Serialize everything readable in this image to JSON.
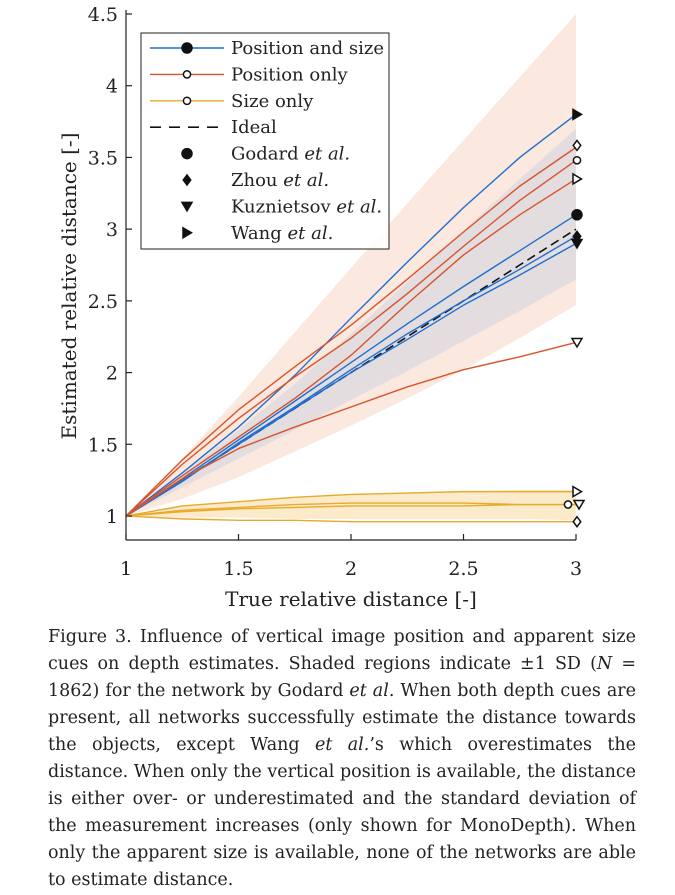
{
  "chart_data": {
    "type": "line",
    "xlabel": "True relative distance [-]",
    "ylabel": "Estimated relative distance [-]",
    "xlim": [
      1,
      3
    ],
    "ylim": [
      0.8,
      4.5
    ],
    "xticks": [
      1,
      1.5,
      2,
      2.5,
      3
    ],
    "yticks": [
      1,
      1.5,
      2,
      2.5,
      3,
      3.5,
      4,
      4.5
    ],
    "xtick_labels": [
      "1",
      "1.5",
      "2",
      "2.5",
      "3"
    ],
    "ytick_labels": [
      "1",
      "1.5",
      "2",
      "2.5",
      "3",
      "3.5",
      "4",
      "4.5"
    ],
    "x": [
      1,
      1.25,
      1.5,
      1.75,
      2,
      2.25,
      2.5,
      2.75,
      3
    ],
    "grid": false,
    "legend_position": "top-left",
    "legend": [
      {
        "text": "Position and size",
        "line": "#1f6fd0",
        "marker": "filled-circle"
      },
      {
        "text": "Position only",
        "line": "#d9532a",
        "marker": "open-circle"
      },
      {
        "text": "Size only",
        "line": "#e9a92a",
        "marker": "open-circle"
      },
      {
        "text": "Ideal",
        "line": "dashed-black",
        "marker": "none"
      },
      {
        "text": "Godard",
        "italic": "et al.",
        "marker": "filled-circle"
      },
      {
        "text": "Zhou",
        "italic": "et al.",
        "marker": "filled-diamond"
      },
      {
        "text": "Kuznietsov",
        "italic": "et al.",
        "marker": "filled-triangle-down"
      },
      {
        "text": "Wang",
        "italic": "et al.",
        "marker": "filled-triangle-right"
      }
    ],
    "bands": [
      {
        "name": "Position only ±1 SD",
        "color": "#f8d5c4",
        "opacity": 0.55,
        "lower": [
          1.0,
          1.12,
          1.27,
          1.45,
          1.63,
          1.82,
          2.02,
          2.24,
          2.47
        ],
        "upper": [
          1.0,
          1.4,
          1.83,
          2.28,
          2.73,
          3.18,
          3.62,
          4.06,
          4.5
        ]
      },
      {
        "name": "Position and size ±1 SD",
        "color": "#cfd3de",
        "opacity": 0.55,
        "lower": [
          1.0,
          1.2,
          1.4,
          1.6,
          1.81,
          2.01,
          2.22,
          2.43,
          2.65
        ],
        "upper": [
          1.0,
          1.29,
          1.6,
          1.92,
          2.27,
          2.63,
          2.99,
          3.35,
          3.7
        ]
      },
      {
        "name": "Size only ±1 SD",
        "color": "#fbe3b5",
        "opacity": 0.7,
        "lower": [
          1.0,
          0.99,
          0.99,
          0.98,
          0.98,
          0.98,
          0.98,
          0.98,
          0.97
        ],
        "upper": [
          1.0,
          1.07,
          1.1,
          1.13,
          1.15,
          1.16,
          1.17,
          1.18,
          1.18
        ]
      }
    ],
    "series": [
      {
        "group": "Position and size",
        "color": "#1f6fd0",
        "end_marker": "filled-triangle-right",
        "values": [
          1.0,
          1.3,
          1.62,
          1.98,
          2.38,
          2.77,
          3.15,
          3.5,
          3.8
        ]
      },
      {
        "group": "Position and size",
        "color": "#1f6fd0",
        "end_marker": "filled-circle",
        "values": [
          1.0,
          1.26,
          1.53,
          1.8,
          2.07,
          2.34,
          2.6,
          2.85,
          3.1
        ]
      },
      {
        "group": "Position and size",
        "color": "#1f6fd0",
        "end_marker": "filled-diamond",
        "values": [
          1.0,
          1.24,
          1.51,
          1.76,
          2.02,
          2.27,
          2.5,
          2.72,
          2.95
        ]
      },
      {
        "group": "Position and size",
        "color": "#1f6fd0",
        "end_marker": "filled-triangle-down",
        "values": [
          1.0,
          1.25,
          1.5,
          1.75,
          2.0,
          2.23,
          2.47,
          2.68,
          2.9
        ]
      },
      {
        "group": "Position only",
        "color": "#d9532a",
        "end_marker": "open-diamond",
        "values": [
          1.0,
          1.39,
          1.74,
          2.04,
          2.33,
          2.65,
          2.98,
          3.3,
          3.57
        ]
      },
      {
        "group": "Position only",
        "color": "#d9532a",
        "end_marker": "open-circle",
        "values": [
          1.0,
          1.36,
          1.68,
          1.97,
          2.24,
          2.55,
          2.88,
          3.2,
          3.48
        ]
      },
      {
        "group": "Position only",
        "color": "#d9532a",
        "end_marker": "open-triangle-right",
        "values": [
          1.0,
          1.28,
          1.55,
          1.82,
          2.12,
          2.48,
          2.82,
          3.1,
          3.35
        ]
      },
      {
        "group": "Position only",
        "color": "#d9532a",
        "end_marker": "open-triangle-down",
        "values": [
          1.0,
          1.26,
          1.47,
          1.62,
          1.76,
          1.9,
          2.02,
          2.11,
          2.21
        ]
      },
      {
        "group": "Size only",
        "color": "#e9a92a",
        "end_marker": "open-triangle-right",
        "values": [
          1.0,
          1.07,
          1.1,
          1.13,
          1.15,
          1.16,
          1.17,
          1.17,
          1.17
        ]
      },
      {
        "group": "Size only",
        "color": "#e9a92a",
        "end_marker": "open-triangle-down",
        "values": [
          1.0,
          1.04,
          1.06,
          1.08,
          1.09,
          1.09,
          1.09,
          1.08,
          1.08
        ]
      },
      {
        "group": "Size only",
        "color": "#e9a92a",
        "end_marker": "open-circle",
        "values": [
          1.0,
          1.03,
          1.05,
          1.06,
          1.07,
          1.07,
          1.07,
          1.08,
          1.08
        ]
      },
      {
        "group": "Size only",
        "color": "#e9a92a",
        "end_marker": "open-diamond",
        "values": [
          1.0,
          0.98,
          0.97,
          0.97,
          0.96,
          0.96,
          0.96,
          0.96,
          0.96
        ]
      }
    ],
    "ideal": {
      "color": "#111111",
      "dashed": true,
      "values": [
        1,
        1.25,
        1.5,
        1.75,
        2,
        2.25,
        2.5,
        2.75,
        3
      ]
    }
  },
  "caption": {
    "parts": [
      {
        "t": "Figure 3. Influence of vertical image position and apparent size cues on depth estimates. Shaded regions indicate ±1 SD (",
        "i": false
      },
      {
        "t": "N",
        "i": true
      },
      {
        "t": " = 1862) for the network by Godard ",
        "i": false
      },
      {
        "t": "et al",
        "i": true
      },
      {
        "t": ". When both depth cues are present, all networks successfully estimate the distance towards the objects, except Wang ",
        "i": false
      },
      {
        "t": "et al.",
        "i": true
      },
      {
        "t": "’s which overestimates the distance. When only the vertical position is available, the distance is either over- or underestimated and the standard deviation of the measurement increases (only shown for MonoDepth). When only the apparent size is available, none of the networks are able to estimate distance.",
        "i": false
      }
    ]
  }
}
